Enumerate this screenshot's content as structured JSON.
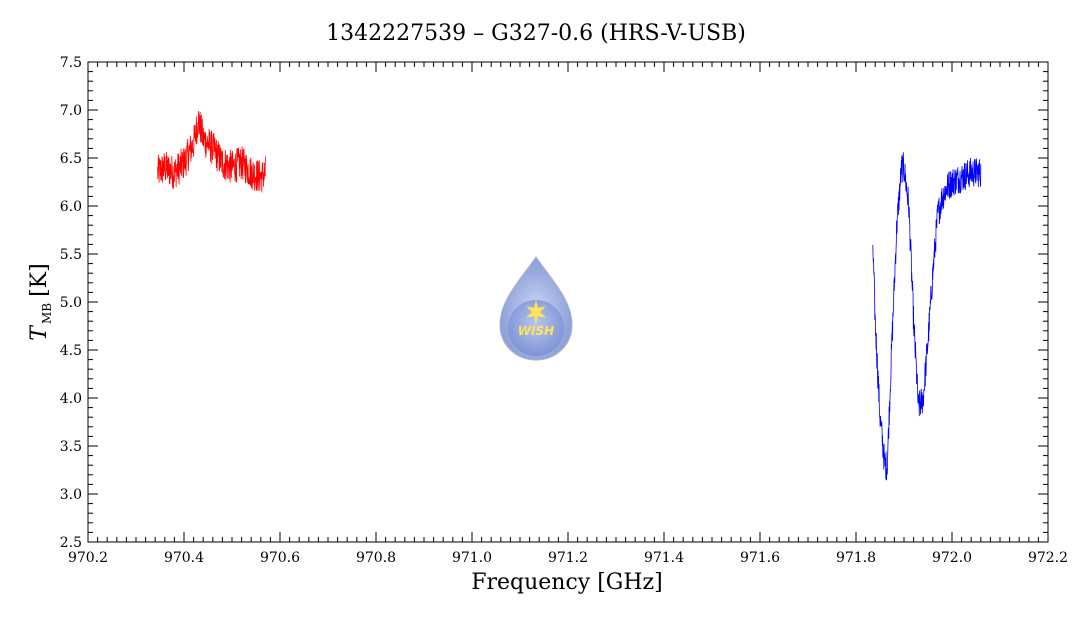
{
  "chart_data": {
    "type": "line",
    "title": "1342227539 – G327-0.6 (HRS-V-USB)",
    "xlabel": "Frequency [GHz]",
    "ylabel": {
      "main": "T",
      "subscript": "MB",
      "unit": "[K]"
    },
    "xlim": [
      970.2,
      972.2
    ],
    "ylim": [
      2.5,
      7.5
    ],
    "x_ticks": [
      "970.2",
      "970.4",
      "970.6",
      "970.8",
      "971.0",
      "971.2",
      "971.4",
      "971.6",
      "971.8",
      "972.0",
      "972.2"
    ],
    "y_ticks": [
      "2.5",
      "3.0",
      "3.5",
      "4.0",
      "4.5",
      "5.0",
      "5.5",
      "6.0",
      "6.5",
      "7.0",
      "7.5"
    ],
    "grid": false,
    "series": [
      {
        "color": "#ff0000",
        "x": [
          970.345,
          970.36,
          970.38,
          970.4,
          970.42,
          970.43,
          970.44,
          970.46,
          970.48,
          970.5,
          970.52,
          970.54,
          970.56,
          970.57
        ],
        "y": [
          6.35,
          6.4,
          6.35,
          6.45,
          6.65,
          6.9,
          6.7,
          6.6,
          6.45,
          6.4,
          6.45,
          6.35,
          6.3,
          6.35
        ],
        "noise": 0.18
      },
      {
        "color": "#0000ff",
        "x": [
          971.835,
          971.84,
          971.85,
          971.86,
          971.865,
          971.875,
          971.885,
          971.895,
          971.9,
          971.91,
          971.92,
          971.93,
          971.94,
          971.95,
          971.96,
          971.97,
          971.98,
          971.99,
          972.0,
          972.02,
          972.04,
          972.06
        ],
        "y": [
          5.6,
          4.8,
          3.8,
          3.3,
          3.3,
          4.6,
          5.8,
          6.4,
          6.4,
          6.0,
          4.8,
          3.9,
          4.0,
          4.6,
          5.3,
          5.9,
          6.1,
          6.2,
          6.25,
          6.3,
          6.35,
          6.35
        ],
        "noise": 0.16
      }
    ],
    "logo_text": "WISH"
  }
}
